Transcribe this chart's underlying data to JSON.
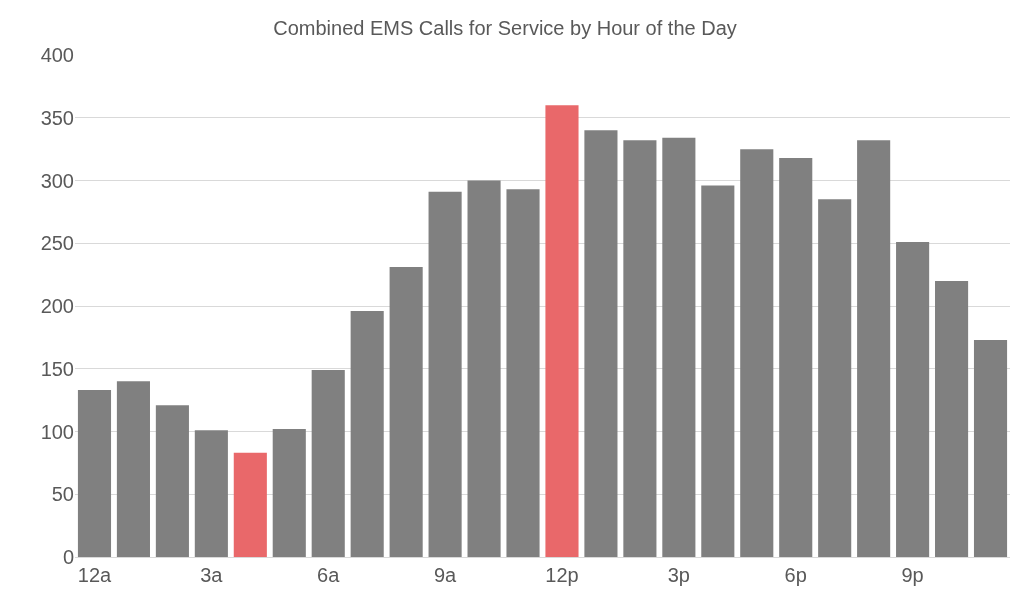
{
  "chart_data": {
    "type": "bar",
    "title": "Combined EMS Calls for Service by Hour of the Day",
    "categories": [
      "12a",
      null,
      null,
      "3a",
      null,
      null,
      "6a",
      null,
      null,
      "9a",
      null,
      null,
      "12p",
      null,
      null,
      "3p",
      null,
      null,
      "6p",
      null,
      null,
      "9p",
      null,
      null
    ],
    "values": [
      133,
      140,
      121,
      101,
      83,
      102,
      149,
      196,
      231,
      291,
      300,
      293,
      360,
      340,
      332,
      334,
      296,
      325,
      318,
      285,
      332,
      251,
      220,
      173
    ],
    "colors": [
      "#808080",
      "#808080",
      "#808080",
      "#808080",
      "#e9686a",
      "#808080",
      "#808080",
      "#808080",
      "#808080",
      "#808080",
      "#808080",
      "#808080",
      "#e9686a",
      "#808080",
      "#808080",
      "#808080",
      "#808080",
      "#808080",
      "#808080",
      "#808080",
      "#808080",
      "#808080",
      "#808080",
      "#808080"
    ],
    "ylim": [
      0,
      400
    ],
    "yticks": [
      0,
      50,
      100,
      150,
      200,
      250,
      300,
      350,
      400
    ],
    "grid": "y"
  }
}
